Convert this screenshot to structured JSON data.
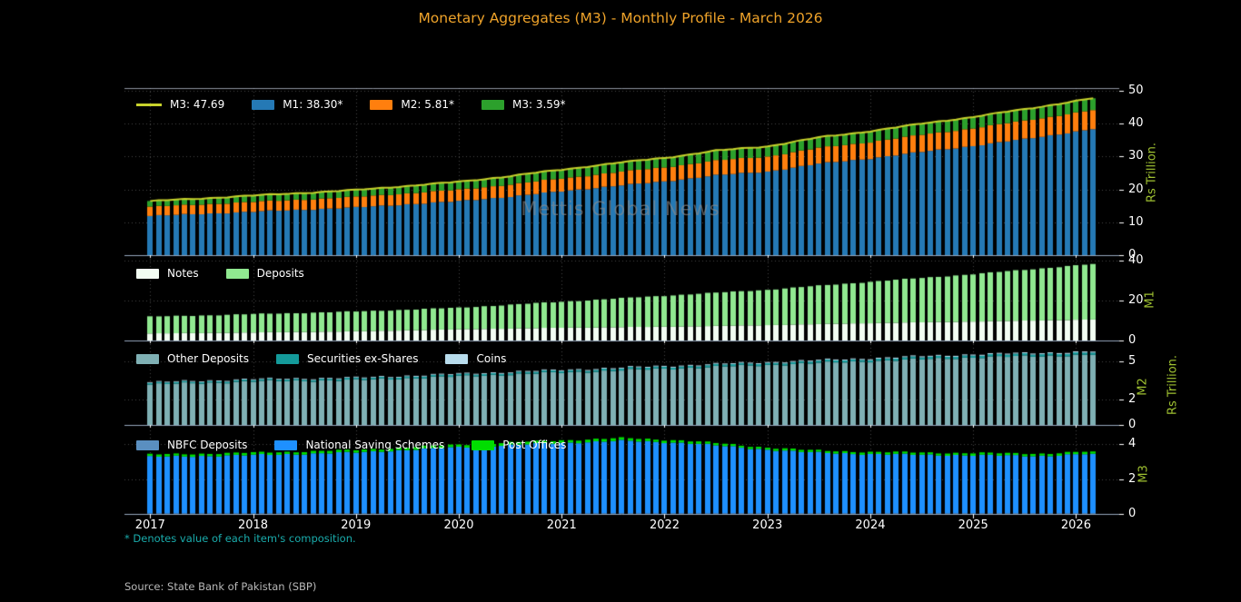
{
  "title": "Monetary Aggregates (M3) - Monthly Profile - March 2026",
  "watermark": "Mettis Global News",
  "footnote": "* Denotes value of each item's composition.",
  "source": "Source: State Bank of Pakistan (SBP)",
  "colors": {
    "background": "#000000",
    "title": "#efa32a",
    "tick_text": "#ffffff",
    "axis_label_green": "#9fc131",
    "footnote_teal": "#1aacac",
    "source_gray": "#b8b8b8",
    "watermark_gray": "#8a8a8a",
    "grid": "rgba(255,255,255,0.28)",
    "spine": "rgba(176,196,222,0.85)",
    "m3_line": "#c8d22c",
    "m1_bar": "#2579b5",
    "m2_bar": "#ff7f0e",
    "m3_bar": "#2ca02c"
  },
  "chart_data": {
    "type": "bar",
    "subtype": "stacked-monthly-bars-with-total-line",
    "x_start": 2017.0,
    "x_end": 2026.1667,
    "months": 111,
    "x_ticks": [
      2017,
      2018,
      2019,
      2020,
      2021,
      2022,
      2023,
      2024,
      2025,
      2026
    ],
    "shared_right_label": "Rs Trillion.",
    "note": "Monthly values estimated from chart pixels; anchors are [decimal_year, Rs trillion] and are linearly interpolated per month.",
    "panels": [
      {
        "id": "m3-aggregate",
        "right_axis_label": "Rs Trillion.",
        "ymax": 50.8,
        "yticks": [
          0,
          10,
          20,
          30,
          40,
          50
        ],
        "line": {
          "label": "M3: 47.69",
          "color": "#c8d22c",
          "value_latest": 47.69
        },
        "series": [
          {
            "name": "M1",
            "label": "M1: 38.30*",
            "color": "#2579b5",
            "wiggle": 0.22,
            "value_latest": 38.3,
            "anchors": [
              [
                2017,
                11.9
              ],
              [
                2018,
                13.2
              ],
              [
                2019,
                14.5
              ],
              [
                2020,
                16.4
              ],
              [
                2020.5,
                17.8
              ],
              [
                2021,
                19.4
              ],
              [
                2021.5,
                21.0
              ],
              [
                2022,
                22.4
              ],
              [
                2022.5,
                24.3
              ],
              [
                2023,
                25.4
              ],
              [
                2023.5,
                27.8
              ],
              [
                2024,
                29.4
              ],
              [
                2024.5,
                31.4
              ],
              [
                2025,
                33.2
              ],
              [
                2025.5,
                35.3
              ],
              [
                2026.1667,
                38.3
              ]
            ]
          },
          {
            "name": "M2",
            "label": "M2: 5.81*",
            "color": "#ff7f0e",
            "wiggle": 0.08,
            "value_latest": 5.81,
            "anchors": [
              [
                2017,
                2.8
              ],
              [
                2018,
                3.0
              ],
              [
                2019,
                3.2
              ],
              [
                2020,
                3.5
              ],
              [
                2021,
                3.9
              ],
              [
                2022,
                4.3
              ],
              [
                2023,
                4.6
              ],
              [
                2024,
                5.0
              ],
              [
                2025,
                5.4
              ],
              [
                2026.1667,
                5.81
              ]
            ]
          },
          {
            "name": "M3",
            "label": "M3: 3.59*",
            "color": "#2ca02c",
            "wiggle": 0.05,
            "value_latest": 3.59,
            "anchors": [
              [
                2017,
                1.7
              ],
              [
                2018,
                1.9
              ],
              [
                2019,
                2.1
              ],
              [
                2020,
                2.4
              ],
              [
                2021,
                2.7
              ],
              [
                2022,
                2.9
              ],
              [
                2023,
                3.1
              ],
              [
                2024,
                3.3
              ],
              [
                2025,
                3.45
              ],
              [
                2026.1667,
                3.59
              ]
            ]
          }
        ]
      },
      {
        "id": "m1-composition",
        "right_axis_label": "M1",
        "ymax": 40.9,
        "yticks": [
          0,
          20,
          40
        ],
        "series": [
          {
            "name": "Notes",
            "label": "Notes",
            "color": "#f2fdf2",
            "wiggle": 0.1,
            "anchors": [
              [
                2017,
                3.5
              ],
              [
                2018,
                4.0
              ],
              [
                2019,
                4.6
              ],
              [
                2020,
                5.6
              ],
              [
                2021,
                6.4
              ],
              [
                2022,
                6.9
              ],
              [
                2023,
                7.7
              ],
              [
                2024,
                8.7
              ],
              [
                2025,
                9.5
              ],
              [
                2026.1667,
                10.5
              ]
            ]
          },
          {
            "name": "Deposits",
            "label": "Deposits",
            "color": "#90e890",
            "wiggle": 0.25,
            "anchors": [
              [
                2017,
                8.4
              ],
              [
                2018,
                9.2
              ],
              [
                2019,
                9.9
              ],
              [
                2020,
                10.8
              ],
              [
                2021,
                13.0
              ],
              [
                2022,
                15.5
              ],
              [
                2023,
                17.7
              ],
              [
                2024,
                20.7
              ],
              [
                2025,
                23.7
              ],
              [
                2026.1667,
                27.8
              ]
            ]
          }
        ]
      },
      {
        "id": "m2-composition",
        "right_axis_label": "M2",
        "ymax": 6.4,
        "yticks": [
          0,
          2,
          5
        ],
        "series": [
          {
            "name": "Other Deposits",
            "label": "Other Deposits",
            "color": "#7fb0b4",
            "wiggle": 0.1,
            "anchors": [
              [
                2017,
                3.2
              ],
              [
                2018,
                3.45
              ],
              [
                2019,
                3.55
              ],
              [
                2020,
                3.85
              ],
              [
                2021,
                4.15
              ],
              [
                2022,
                4.45
              ],
              [
                2023,
                4.75
              ],
              [
                2024,
                5.05
              ],
              [
                2025,
                5.35
              ],
              [
                2026.1667,
                5.55
              ]
            ]
          },
          {
            "name": "Securities ex-Shares",
            "label": "Securities ex-Shares",
            "color": "#149a9a",
            "wiggle": 0.01,
            "anchors": [
              [
                2017,
                0.12
              ],
              [
                2026.1667,
                0.18
              ]
            ]
          },
          {
            "name": "Coins",
            "label": "Coins",
            "color": "#b8dcec",
            "wiggle": 0.005,
            "anchors": [
              [
                2017,
                0.06
              ],
              [
                2026.1667,
                0.08
              ]
            ]
          }
        ]
      },
      {
        "id": "m3-composition",
        "right_axis_label": "M3",
        "ymax": 4.8,
        "yticks": [
          0,
          2,
          4
        ],
        "series": [
          {
            "name": "NBFC Deposits",
            "label": "NBFC Deposits",
            "color": "#5a8fc0",
            "wiggle": 0.004,
            "anchors": [
              [
                2017,
                0.03
              ],
              [
                2026.1667,
                0.04
              ]
            ]
          },
          {
            "name": "National Saving Schemes",
            "label": "National Saving Schemes",
            "color": "#1e90ff",
            "wiggle": 0.06,
            "anchors": [
              [
                2017,
                3.25
              ],
              [
                2018,
                3.35
              ],
              [
                2019,
                3.5
              ],
              [
                2020,
                3.8
              ],
              [
                2021,
                4.05
              ],
              [
                2021.6,
                4.17
              ],
              [
                2022.2,
                4.05
              ],
              [
                2022.8,
                3.75
              ],
              [
                2023.4,
                3.5
              ],
              [
                2024,
                3.4
              ],
              [
                2025,
                3.33
              ],
              [
                2025.7,
                3.3
              ],
              [
                2026.1667,
                3.42
              ]
            ]
          },
          {
            "name": "Post Offices",
            "label": "Post Offices",
            "color": "#00dd00",
            "wiggle": 0.012,
            "anchors": [
              [
                2017,
                0.13
              ],
              [
                2021.5,
                0.15
              ],
              [
                2023,
                0.12
              ],
              [
                2026.1667,
                0.13
              ]
            ]
          }
        ]
      }
    ]
  }
}
